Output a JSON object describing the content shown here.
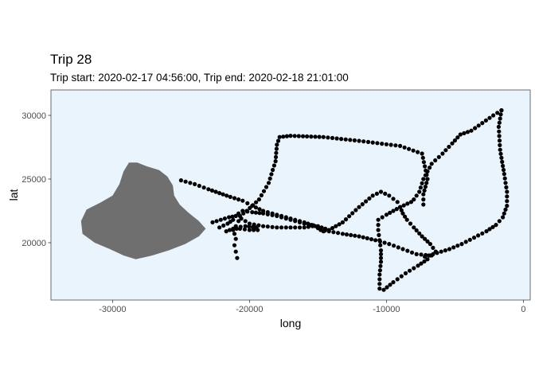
{
  "chart_data": {
    "type": "scatter",
    "title": "Trip 28",
    "subtitle": "Trip start: 2020-02-17 04:56:00, Trip end: 2020-02-18 21:01:00",
    "xlabel": "long",
    "ylabel": "lat",
    "xlim": [
      -34500,
      500
    ],
    "ylim": [
      15500,
      32000
    ],
    "x_ticks": [
      -30000,
      -20000,
      -10000,
      0
    ],
    "x_tick_labels": [
      "-30000",
      "-20000",
      "-10000",
      "0"
    ],
    "y_ticks": [
      20000,
      25000,
      30000
    ],
    "y_tick_labels": [
      "20000",
      "25000",
      "30000"
    ],
    "grid": false,
    "legend": "none",
    "colors": {
      "panel_background": "#e9f4fd",
      "panel_border": "#4d4d4d",
      "land": "#6f6f6f",
      "points": "#000000"
    },
    "land_outline": [
      [
        -28800,
        26300
      ],
      [
        -28200,
        26300
      ],
      [
        -27500,
        26000
      ],
      [
        -26600,
        25700
      ],
      [
        -26000,
        25200
      ],
      [
        -25600,
        24500
      ],
      [
        -25500,
        23700
      ],
      [
        -25100,
        23000
      ],
      [
        -24500,
        22400
      ],
      [
        -23700,
        21700
      ],
      [
        -23200,
        21100
      ],
      [
        -23700,
        20500
      ],
      [
        -24700,
        19900
      ],
      [
        -25900,
        19400
      ],
      [
        -27100,
        19000
      ],
      [
        -28300,
        18700
      ],
      [
        -29200,
        19000
      ],
      [
        -30200,
        19500
      ],
      [
        -31300,
        20000
      ],
      [
        -32200,
        20700
      ],
      [
        -32300,
        21700
      ],
      [
        -31900,
        22600
      ],
      [
        -30800,
        23200
      ],
      [
        -30000,
        23700
      ],
      [
        -29500,
        24600
      ],
      [
        -29200,
        25600
      ]
    ],
    "track_segments": [
      [
        [
          -21200,
          21000
        ],
        [
          -21000,
          21300
        ],
        [
          -20800,
          21700
        ],
        [
          -20700,
          22100
        ],
        [
          -20200,
          22500
        ],
        [
          -19300,
          23400
        ],
        [
          -18600,
          24700
        ],
        [
          -18100,
          26400
        ],
        [
          -18000,
          27700
        ],
        [
          -17800,
          28300
        ],
        [
          -17000,
          28400
        ],
        [
          -14600,
          28300
        ],
        [
          -12000,
          28000
        ],
        [
          -9000,
          27600
        ],
        [
          -7400,
          27000
        ],
        [
          -7000,
          25000
        ],
        [
          -7300,
          23800
        ],
        [
          -7300,
          23000
        ]
      ],
      [
        [
          -25000,
          24900
        ],
        [
          -24000,
          24600
        ],
        [
          -23000,
          24200
        ],
        [
          -22200,
          23900
        ],
        [
          -21400,
          23600
        ],
        [
          -20500,
          23300
        ],
        [
          -19800,
          22900
        ],
        [
          -19000,
          22500
        ],
        [
          -18000,
          22200
        ],
        [
          -17000,
          21900
        ],
        [
          -16000,
          21600
        ],
        [
          -15200,
          21300
        ],
        [
          -14800,
          21000
        ],
        [
          -14200,
          20900
        ],
        [
          -13200,
          20700
        ],
        [
          -12000,
          20500
        ],
        [
          -10800,
          20200
        ],
        [
          -9800,
          19900
        ],
        [
          -8800,
          19500
        ],
        [
          -7800,
          19100
        ],
        [
          -6800,
          19000
        ]
      ],
      [
        [
          -22200,
          21200
        ],
        [
          -21600,
          21500
        ],
        [
          -21200,
          21800
        ],
        [
          -21000,
          22100
        ],
        [
          -20600,
          21900
        ],
        [
          -20000,
          21500
        ],
        [
          -19000,
          21300
        ],
        [
          -18000,
          21200
        ],
        [
          -17000,
          21200
        ],
        [
          -16000,
          21200
        ],
        [
          -15400,
          21300
        ],
        [
          -15000,
          21200
        ],
        [
          -14600,
          20900
        ]
      ],
      [
        [
          -21700,
          20900
        ],
        [
          -21200,
          21100
        ],
        [
          -20700,
          21100
        ],
        [
          -20000,
          21000
        ],
        [
          -19400,
          21000
        ],
        [
          -19500,
          21200
        ],
        [
          -20300,
          21300
        ],
        [
          -21000,
          21200
        ],
        [
          -21100,
          20700
        ],
        [
          -21000,
          20300
        ],
        [
          -21100,
          19800
        ],
        [
          -21000,
          19300
        ],
        [
          -20900,
          18800
        ]
      ],
      [
        [
          -22700,
          21600
        ],
        [
          -22100,
          21800
        ],
        [
          -21500,
          22000
        ],
        [
          -21000,
          22100
        ],
        [
          -20800,
          22300
        ],
        [
          -20500,
          22500
        ],
        [
          -19800,
          22400
        ],
        [
          -19000,
          22300
        ],
        [
          -18000,
          22100
        ],
        [
          -17000,
          21800
        ],
        [
          -16000,
          21500
        ],
        [
          -15000,
          21300
        ],
        [
          -14200,
          21000
        ],
        [
          -13200,
          21600
        ],
        [
          -12000,
          22800
        ],
        [
          -11000,
          23700
        ],
        [
          -10400,
          24000
        ],
        [
          -9800,
          23700
        ],
        [
          -9200,
          23200
        ],
        [
          -9000,
          22800
        ],
        [
          -8800,
          22300
        ],
        [
          -8500,
          21800
        ],
        [
          -8000,
          21200
        ],
        [
          -7400,
          20500
        ],
        [
          -6800,
          19900
        ],
        [
          -6400,
          19300
        ]
      ],
      [
        [
          -7200,
          18900
        ],
        [
          -6300,
          19200
        ],
        [
          -5400,
          19500
        ],
        [
          -4500,
          19900
        ],
        [
          -3600,
          20400
        ],
        [
          -2700,
          20900
        ],
        [
          -2000,
          21400
        ],
        [
          -1500,
          22000
        ],
        [
          -1200,
          22900
        ],
        [
          -1200,
          24000
        ],
        [
          -1400,
          25400
        ],
        [
          -1700,
          27300
        ],
        [
          -1800,
          29100
        ],
        [
          -1600,
          30400
        ]
      ],
      [
        [
          -1600,
          30400
        ],
        [
          -2200,
          30000
        ],
        [
          -3000,
          29400
        ],
        [
          -3800,
          28800
        ],
        [
          -4600,
          28500
        ],
        [
          -5200,
          27800
        ],
        [
          -5900,
          27000
        ],
        [
          -6700,
          26200
        ],
        [
          -7300,
          25000
        ],
        [
          -7600,
          24000
        ],
        [
          -8000,
          23400
        ]
      ],
      [
        [
          -8200,
          23200
        ],
        [
          -9000,
          22800
        ],
        [
          -10000,
          22200
        ],
        [
          -10600,
          21800
        ],
        [
          -10600,
          21000
        ],
        [
          -10500,
          20200
        ],
        [
          -10400,
          19400
        ],
        [
          -10400,
          18500
        ],
        [
          -10500,
          17500
        ],
        [
          -10500,
          16400
        ],
        [
          -10200,
          16300
        ],
        [
          -9500,
          16900
        ],
        [
          -8600,
          17600
        ],
        [
          -7700,
          18200
        ],
        [
          -7000,
          18700
        ],
        [
          -6700,
          19000
        ],
        [
          -6400,
          19300
        ]
      ]
    ]
  }
}
